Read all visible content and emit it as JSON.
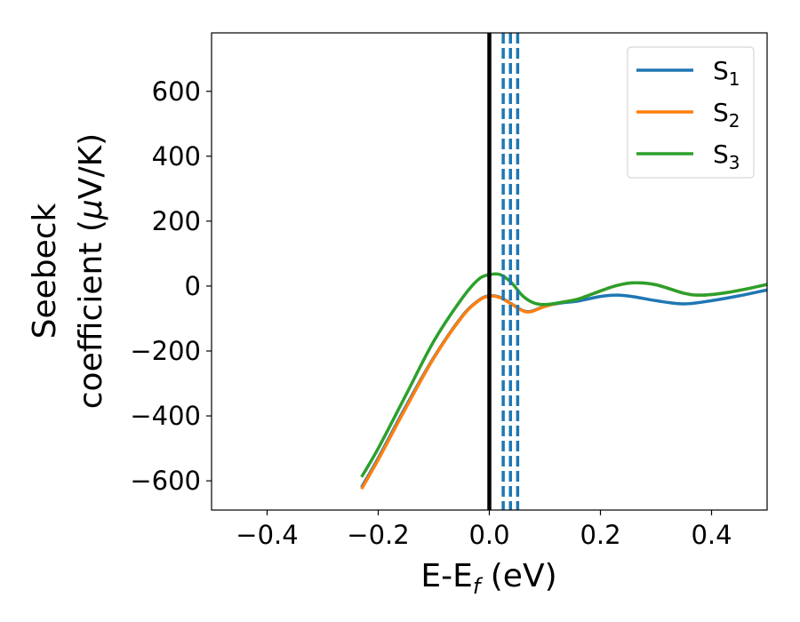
{
  "chart_data": {
    "type": "line",
    "xlabel": "E-E",
    "xlabel_sub": "f",
    "xlabel_unit": " (eV)",
    "ylabel_line1": "Seebeck",
    "ylabel_line2_prefix": "coefficient  (",
    "ylabel_mu": "μ",
    "ylabel_line2_suffix": "V/K)",
    "xlim": [
      -0.5,
      0.5
    ],
    "ylim": [
      -690,
      780
    ],
    "xticks": [
      -0.4,
      -0.2,
      0.0,
      0.2,
      0.4
    ],
    "xtick_labels": [
      "−0.4",
      "−0.2",
      "0.0",
      "0.2",
      "0.4"
    ],
    "yticks": [
      -600,
      -400,
      -200,
      0,
      200,
      400,
      600
    ],
    "ytick_labels": [
      "−600",
      "−400",
      "−200",
      "0",
      "200",
      "400",
      "600"
    ],
    "grid": false,
    "legend_position": "top-right",
    "vertical_solid_line": {
      "x": 0.0,
      "color": "#000000"
    },
    "vertical_dashed_lines": {
      "x": [
        0.025,
        0.038,
        0.051
      ],
      "color": "#1f77b4"
    },
    "series": [
      {
        "name": "S",
        "sub": "1",
        "color": "#1f77b4",
        "points": [
          [
            -0.23,
            -620
          ],
          [
            -0.2,
            -530
          ],
          [
            -0.15,
            -370
          ],
          [
            -0.1,
            -220
          ],
          [
            -0.05,
            -95
          ],
          [
            -0.02,
            -45
          ],
          [
            0.0,
            -30
          ],
          [
            0.02,
            -35
          ],
          [
            0.04,
            -55
          ],
          [
            0.06,
            -75
          ],
          [
            0.075,
            -78
          ],
          [
            0.1,
            -62
          ],
          [
            0.13,
            -52
          ],
          [
            0.16,
            -46
          ],
          [
            0.2,
            -32
          ],
          [
            0.23,
            -28
          ],
          [
            0.26,
            -33
          ],
          [
            0.3,
            -45
          ],
          [
            0.35,
            -55
          ],
          [
            0.4,
            -45
          ],
          [
            0.45,
            -30
          ],
          [
            0.5,
            -12
          ]
        ]
      },
      {
        "name": "S",
        "sub": "2",
        "color": "#ff7f0e",
        "points": [
          [
            -0.23,
            -625
          ],
          [
            -0.2,
            -535
          ],
          [
            -0.15,
            -375
          ],
          [
            -0.1,
            -222
          ],
          [
            -0.05,
            -97
          ],
          [
            -0.02,
            -46
          ],
          [
            0.0,
            -31
          ],
          [
            0.02,
            -36
          ],
          [
            0.04,
            -56
          ],
          [
            0.06,
            -76
          ],
          [
            0.075,
            -79
          ],
          [
            0.1,
            -63
          ],
          [
            0.13,
            -50
          ],
          [
            0.16,
            -40
          ],
          [
            0.2,
            -15
          ],
          [
            0.23,
            2
          ],
          [
            0.26,
            10
          ],
          [
            0.3,
            4
          ],
          [
            0.35,
            -22
          ],
          [
            0.38,
            -28
          ],
          [
            0.42,
            -22
          ],
          [
            0.46,
            -10
          ],
          [
            0.5,
            5
          ]
        ]
      },
      {
        "name": "S",
        "sub": "3",
        "color": "#2ca02c",
        "points": [
          [
            -0.23,
            -588
          ],
          [
            -0.2,
            -500
          ],
          [
            -0.15,
            -335
          ],
          [
            -0.1,
            -170
          ],
          [
            -0.05,
            -40
          ],
          [
            -0.02,
            20
          ],
          [
            0.0,
            35
          ],
          [
            0.02,
            35
          ],
          [
            0.04,
            10
          ],
          [
            0.06,
            -30
          ],
          [
            0.08,
            -52
          ],
          [
            0.1,
            -57
          ],
          [
            0.13,
            -50
          ],
          [
            0.16,
            -40
          ],
          [
            0.2,
            -15
          ],
          [
            0.23,
            2
          ],
          [
            0.26,
            10
          ],
          [
            0.3,
            4
          ],
          [
            0.35,
            -22
          ],
          [
            0.38,
            -28
          ],
          [
            0.42,
            -22
          ],
          [
            0.46,
            -10
          ],
          [
            0.5,
            5
          ]
        ]
      }
    ]
  }
}
